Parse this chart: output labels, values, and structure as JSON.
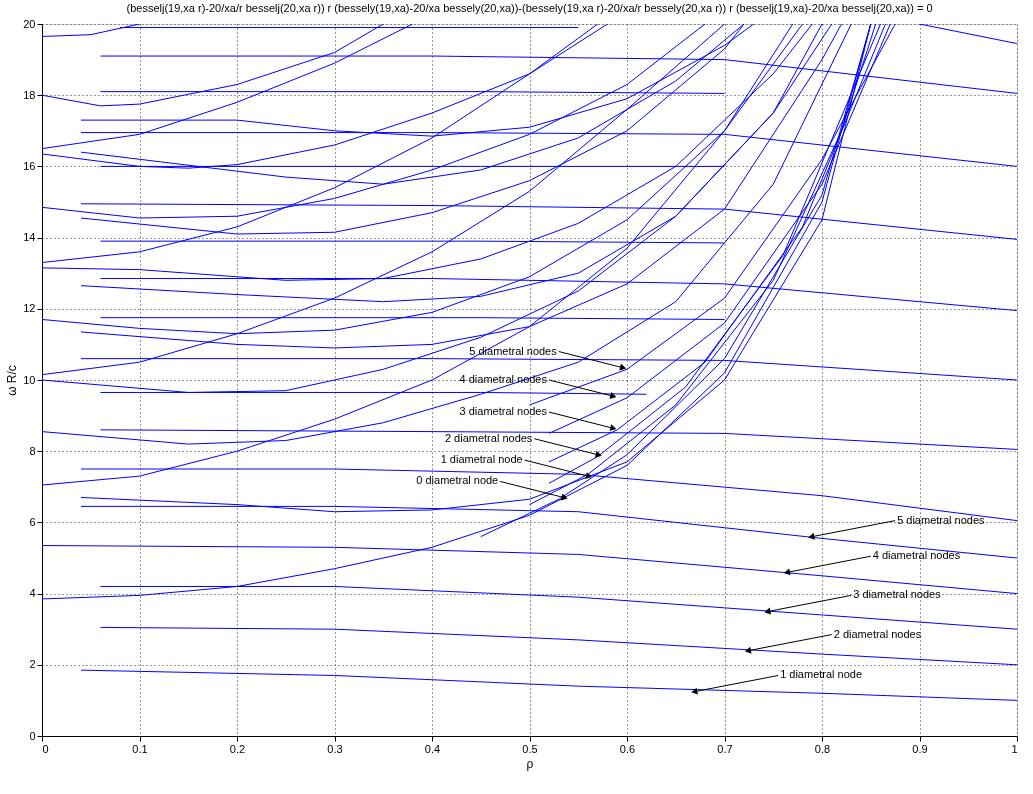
{
  "chart_data": {
    "type": "line",
    "title": "(besselj(19,xa r)-20/xa/r besselj(20,xa r)) r (bessely(19,xa)-20/xa bessely(20,xa))-(bessely(19,xa r)-20/xa/r bessely(20,xa r)) r (besselj(19,xa)-20/xa besselj(20,xa)) = 0",
    "xlabel": "ρ",
    "ylabel": "ω R/c",
    "xlim": [
      0,
      1
    ],
    "ylim": [
      0,
      20
    ],
    "xticks": [
      0,
      0.1,
      0.2,
      0.3,
      0.4,
      0.5,
      0.6,
      0.7,
      0.8,
      0.9,
      1
    ],
    "yticks": [
      0,
      2,
      4,
      6,
      8,
      10,
      12,
      14,
      16,
      18,
      20
    ],
    "grid": true,
    "legend": false,
    "marker": "none",
    "line_style": "solid",
    "series": [
      {
        "color": "#0000ff",
        "x": [
          0.04,
          0.3,
          0.55,
          0.8,
          1
        ],
        "values": [
          1.85,
          1.7,
          1.4,
          1.2,
          1.0
        ]
      },
      {
        "color": "#0000ff",
        "x": [
          0.06,
          0.3,
          0.55,
          0.8,
          1
        ],
        "values": [
          3.05,
          3.0,
          2.7,
          2.3,
          2.0
        ]
      },
      {
        "color": "#0000ff",
        "x": [
          0.06,
          0.3,
          0.55,
          0.8,
          1
        ],
        "values": [
          4.2,
          4.2,
          3.9,
          3.4,
          3.0
        ]
      },
      {
        "color": "#0000ff",
        "x": [
          0,
          0.3,
          0.55,
          0.8,
          1
        ],
        "values": [
          5.35,
          5.3,
          5.1,
          4.5,
          4.0
        ]
      },
      {
        "color": "#0000ff",
        "x": [
          0.04,
          0.3,
          0.55,
          0.8,
          1
        ],
        "values": [
          6.45,
          6.45,
          6.3,
          5.55,
          5.0
        ]
      },
      {
        "color": "#0000ff",
        "x": [
          0.04,
          0.3,
          0.55,
          0.8,
          1
        ],
        "values": [
          7.5,
          7.5,
          7.35,
          6.75,
          6.05
        ]
      },
      {
        "color": "#0000ff",
        "x": [
          0.06,
          0.4,
          0.7,
          1
        ],
        "values": [
          8.6,
          8.55,
          8.5,
          8.05
        ]
      },
      {
        "color": "#0000ff",
        "x": [
          0.06,
          0.45,
          0.62
        ],
        "values": [
          9.65,
          9.65,
          9.6
        ]
      },
      {
        "color": "#0000ff",
        "x": [
          0.04,
          0.4,
          0.7,
          1
        ],
        "values": [
          10.6,
          10.6,
          10.55,
          10.0
        ]
      },
      {
        "color": "#0000ff",
        "x": [
          0.06,
          0.45,
          0.7
        ],
        "values": [
          11.75,
          11.75,
          11.7
        ]
      },
      {
        "color": "#0000ff",
        "x": [
          0.06,
          0.4,
          0.7,
          1
        ],
        "values": [
          12.85,
          12.85,
          12.7,
          11.95
        ]
      },
      {
        "color": "#0000ff",
        "x": [
          0.06,
          0.45,
          0.7
        ],
        "values": [
          13.9,
          13.9,
          13.85
        ]
      },
      {
        "color": "#0000ff",
        "x": [
          0.04,
          0.4,
          0.7,
          1
        ],
        "values": [
          14.95,
          14.9,
          14.8,
          13.95
        ]
      },
      {
        "color": "#0000ff",
        "x": [
          0.06,
          0.45,
          0.7
        ],
        "values": [
          16.0,
          16.0,
          16.0
        ]
      },
      {
        "color": "#0000ff",
        "x": [
          0.04,
          0.4,
          0.7,
          1
        ],
        "values": [
          16.95,
          16.95,
          16.9,
          16.0
        ]
      },
      {
        "color": "#0000ff",
        "x": [
          0.06,
          0.45,
          0.7
        ],
        "values": [
          18.1,
          18.1,
          18.05
        ]
      },
      {
        "color": "#0000ff",
        "x": [
          0.06,
          0.4,
          0.7,
          1
        ],
        "values": [
          19.1,
          19.1,
          19.0,
          18.05
        ]
      },
      {
        "color": "#0000ff",
        "x": [
          0.08,
          0.55
        ],
        "values": [
          19.9,
          19.9
        ]
      },
      {
        "color": "#0000ff",
        "x": [
          0.9,
          1
        ],
        "values": [
          20,
          19.45
        ]
      },
      {
        "color": "#0000ff",
        "x": [
          0.04,
          0.2,
          0.3,
          0.4,
          0.5,
          0.6,
          0.7,
          0.8,
          0.85
        ],
        "values": [
          6.7,
          6.5,
          6.3,
          6.35,
          6.65,
          7.7,
          10.0,
          14.5,
          20
        ]
      },
      {
        "color": "#0000ff",
        "x": [
          0,
          0.15,
          0.25,
          0.35,
          0.45,
          0.55,
          0.65,
          0.75,
          0.83
        ],
        "values": [
          8.55,
          8.2,
          8.3,
          8.8,
          9.6,
          10.5,
          12.2,
          15.5,
          20
        ]
      },
      {
        "color": "#0000ff",
        "x": [
          0,
          0.15,
          0.25,
          0.35,
          0.45,
          0.55,
          0.65,
          0.75,
          0.81
        ],
        "values": [
          10.0,
          9.65,
          9.7,
          10.3,
          11.2,
          12.5,
          14.6,
          17.5,
          20
        ]
      },
      {
        "color": "#0000ff",
        "x": [
          0,
          0.1,
          0.2,
          0.3,
          0.4,
          0.5,
          0.6,
          0.7,
          0.78
        ],
        "values": [
          11.7,
          11.45,
          11.3,
          11.4,
          11.9,
          12.9,
          14.5,
          17.0,
          20
        ]
      },
      {
        "color": "#0000ff",
        "x": [
          0,
          0.1,
          0.25,
          0.35,
          0.45,
          0.55,
          0.65,
          0.75,
          0.79
        ],
        "values": [
          13.15,
          13.1,
          12.8,
          12.85,
          13.4,
          14.4,
          16.0,
          18.6,
          20
        ]
      },
      {
        "color": "#0000ff",
        "x": [
          0,
          0.1,
          0.2,
          0.3,
          0.4,
          0.5,
          0.6,
          0.68
        ],
        "values": [
          14.85,
          14.55,
          14.6,
          15.1,
          15.9,
          16.9,
          18.3,
          20
        ]
      },
      {
        "color": "#0000ff",
        "x": [
          0,
          0.1,
          0.15,
          0.2,
          0.3,
          0.4,
          0.5,
          0.58
        ],
        "values": [
          16.35,
          16.0,
          15.95,
          16.05,
          16.6,
          17.5,
          18.6,
          20
        ]
      },
      {
        "color": "#0000ff",
        "x": [
          0,
          0.06,
          0.1,
          0.2,
          0.3,
          0.35
        ],
        "values": [
          18.0,
          17.7,
          17.75,
          18.3,
          19.2,
          20
        ]
      },
      {
        "color": "#0000ff",
        "x": [
          0,
          0.05,
          0.1
        ],
        "values": [
          19.65,
          19.7,
          20
        ]
      },
      {
        "color": "#0000ff",
        "x": [
          0.04,
          0.2,
          0.3,
          0.4,
          0.5,
          0.6,
          0.7,
          0.72
        ],
        "values": [
          14.55,
          14.1,
          14.15,
          14.7,
          15.6,
          17.0,
          19.3,
          20
        ]
      },
      {
        "color": "#0000ff",
        "x": [
          0.04,
          0.25,
          0.35,
          0.45,
          0.55,
          0.65,
          0.72
        ],
        "values": [
          16.4,
          15.7,
          15.5,
          15.9,
          16.8,
          18.4,
          20
        ]
      },
      {
        "color": "#0000ff",
        "x": [
          0.04,
          0.2,
          0.35,
          0.45,
          0.55,
          0.65,
          0.75,
          0.8
        ],
        "values": [
          12.65,
          12.4,
          12.2,
          12.35,
          13.0,
          14.6,
          17.5,
          20
        ]
      },
      {
        "color": "#0000ff",
        "x": [
          0.04,
          0.2,
          0.3,
          0.4,
          0.5,
          0.6,
          0.7,
          0.8,
          0.82
        ],
        "values": [
          11.35,
          11.0,
          10.9,
          11.0,
          11.5,
          12.7,
          14.8,
          19.0,
          20
        ]
      },
      {
        "color": "#0000ff",
        "x": [
          0.04,
          0.2,
          0.3,
          0.4,
          0.5,
          0.6,
          0.7,
          0.73
        ],
        "values": [
          17.3,
          17.3,
          17.0,
          16.85,
          17.1,
          17.9,
          19.4,
          20
        ]
      },
      {
        "color": "#0000ff",
        "x": [
          0,
          0.1,
          0.2,
          0.3,
          0.4,
          0.5,
          0.6,
          0.7,
          0.8,
          0.85
        ],
        "values": [
          3.85,
          3.95,
          4.2,
          4.7,
          5.3,
          6.2,
          7.6,
          10.2,
          15.0,
          20
        ]
      },
      {
        "color": "#0000ff",
        "x": [
          0,
          0.1,
          0.2,
          0.3,
          0.4,
          0.5,
          0.6,
          0.7,
          0.77
        ],
        "values": [
          7.05,
          7.3,
          8.0,
          8.9,
          10.0,
          11.5,
          13.7,
          17.0,
          20
        ]
      },
      {
        "color": "#0000ff",
        "x": [
          0,
          0.1,
          0.2,
          0.3,
          0.4,
          0.5,
          0.6,
          0.7
        ],
        "values": [
          10.15,
          10.5,
          11.3,
          12.3,
          13.6,
          15.3,
          17.6,
          20
        ]
      },
      {
        "color": "#0000ff",
        "x": [
          0,
          0.1,
          0.2,
          0.3,
          0.4,
          0.5,
          0.57
        ],
        "values": [
          13.3,
          13.6,
          14.3,
          15.4,
          16.8,
          18.6,
          20
        ]
      },
      {
        "color": "#0000ff",
        "x": [
          0,
          0.1,
          0.2,
          0.3,
          0.38
        ],
        "values": [
          16.5,
          16.9,
          17.8,
          18.9,
          20
        ]
      },
      {
        "color": "#0000ff",
        "x": [
          0.45,
          0.53,
          0.6,
          0.7,
          0.8,
          0.85
        ],
        "values": [
          5.6,
          6.65,
          7.9,
          10.6,
          15.2,
          20
        ]
      },
      {
        "color": "#0000ff",
        "x": [
          0.5,
          0.56,
          0.65,
          0.75,
          0.82,
          0.855
        ],
        "values": [
          6.5,
          7.35,
          9.3,
          12.8,
          17.0,
          20
        ]
      },
      {
        "color": "#0000ff",
        "x": [
          0.52,
          0.57,
          0.66,
          0.76,
          0.86
        ],
        "values": [
          7.1,
          7.85,
          9.8,
          13.5,
          20
        ]
      },
      {
        "color": "#0000ff",
        "x": [
          0.52,
          0.59,
          0.68,
          0.78,
          0.865
        ],
        "values": [
          7.7,
          8.6,
          10.5,
          14.3,
          20
        ]
      },
      {
        "color": "#0000ff",
        "x": [
          0.52,
          0.6,
          0.7,
          0.8,
          0.87
        ],
        "values": [
          8.5,
          9.5,
          11.6,
          15.5,
          20
        ]
      },
      {
        "color": "#0000ff",
        "x": [
          0.5,
          0.6,
          0.7,
          0.8,
          0.875
        ],
        "values": [
          9.3,
          10.3,
          12.3,
          16.2,
          20
        ]
      }
    ],
    "annotations": [
      {
        "text": "5 diametral nodes",
        "x": 0.595,
        "y": 10.35
      },
      {
        "text": "4 diametral nodes",
        "x": 0.585,
        "y": 9.55
      },
      {
        "text": "3 diametral nodes",
        "x": 0.585,
        "y": 8.65
      },
      {
        "text": "2 diametral nodes",
        "x": 0.57,
        "y": 7.9
      },
      {
        "text": "1 diametral node",
        "x": 0.56,
        "y": 7.3
      },
      {
        "text": "0 diametral node",
        "x": 0.535,
        "y": 6.7
      },
      {
        "text": "5 diametral nodes",
        "x": 0.79,
        "y": 5.6
      },
      {
        "text": "4 diametral nodes",
        "x": 0.765,
        "y": 4.6
      },
      {
        "text": "3 diametral nodes",
        "x": 0.745,
        "y": 3.5
      },
      {
        "text": "2 diametral nodes",
        "x": 0.725,
        "y": 2.4
      },
      {
        "text": "1 diametral node",
        "x": 0.67,
        "y": 1.25
      }
    ]
  }
}
